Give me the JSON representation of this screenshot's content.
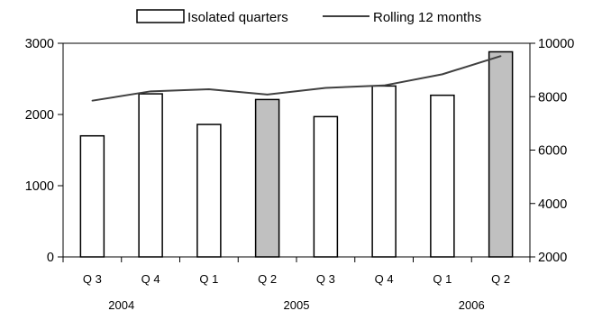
{
  "chart_data": {
    "type": "bar+line",
    "legend": {
      "placement": "top",
      "entries": [
        {
          "label": "Isolated quarters",
          "kind": "bar"
        },
        {
          "label": "Rolling 12 months",
          "kind": "line"
        }
      ]
    },
    "categories": [
      "Q 3",
      "Q 4",
      "Q 1",
      "Q 2",
      "Q 3",
      "Q 4",
      "Q 1",
      "Q 2"
    ],
    "year_labels": [
      {
        "label": "2004",
        "spans": [
          0,
          1
        ]
      },
      {
        "label": "2005",
        "spans": [
          2,
          5
        ]
      },
      {
        "label": "2006",
        "spans": [
          6,
          7
        ]
      }
    ],
    "series": [
      {
        "name": "Isolated quarters",
        "type": "bar",
        "axis": "left",
        "values": [
          1700,
          2290,
          1860,
          2210,
          1970,
          2400,
          2270,
          2880
        ],
        "highlighted": [
          false,
          false,
          false,
          true,
          false,
          false,
          false,
          true
        ]
      },
      {
        "name": "Rolling 12 months",
        "type": "line",
        "axis": "right",
        "values": [
          7850,
          8200,
          8280,
          8080,
          8330,
          8420,
          8840,
          9520
        ]
      }
    ],
    "y_left": {
      "min": 0,
      "max": 3000,
      "ticks": [
        "0",
        "1000",
        "2000",
        "3000"
      ]
    },
    "y_right": {
      "min": 2000,
      "max": 10000,
      "ticks": [
        "2000",
        "4000",
        "6000",
        "8000",
        "10000"
      ]
    },
    "grid": false,
    "colors": {
      "bar_fill": "#ffffff",
      "bar_highlight": "#c0c0c0",
      "bar_stroke": "#000000",
      "line": "#404040"
    }
  }
}
